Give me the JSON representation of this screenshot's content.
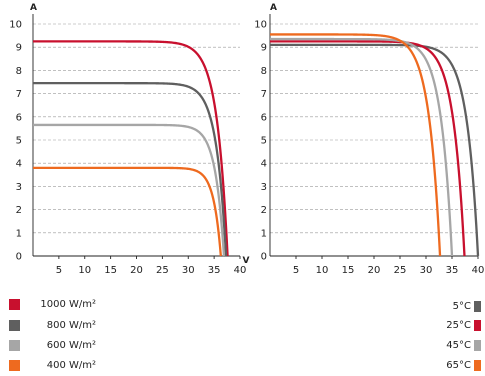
{
  "chart_data": [
    {
      "type": "line",
      "title": "",
      "ylabel": "A",
      "xlabel": "V",
      "xlim": [
        0,
        40
      ],
      "ylim": [
        0,
        10
      ],
      "x_ticks": [
        5,
        10,
        15,
        20,
        25,
        30,
        35,
        40
      ],
      "y_ticks": [
        0,
        1,
        2,
        3,
        4,
        5,
        6,
        7,
        8,
        9,
        10
      ],
      "grid": "horizontal dashed",
      "legend_position": "bottom-left",
      "series": [
        {
          "name": "1000 W/m²",
          "color": "#c8102e",
          "isc": 9.25,
          "voc": 37.6,
          "knee": 31.0
        },
        {
          "name": "800 W/m²",
          "color": "#5f5f5f",
          "isc": 7.45,
          "voc": 37.3,
          "knee": 31.3
        },
        {
          "name": "600 W/m²",
          "color": "#a6a6a6",
          "isc": 5.65,
          "voc": 36.9,
          "knee": 31.6
        },
        {
          "name": "400 W/m²",
          "color": "#ee6a1f",
          "isc": 3.8,
          "voc": 36.3,
          "knee": 31.8
        }
      ]
    },
    {
      "type": "line",
      "title": "",
      "ylabel": "A",
      "xlabel": "",
      "xlim": [
        0,
        40
      ],
      "ylim": [
        0,
        10
      ],
      "x_ticks": [
        5,
        10,
        15,
        20,
        25,
        30,
        35,
        40
      ],
      "y_ticks": [
        0,
        1,
        2,
        3,
        4,
        5,
        6,
        7,
        8,
        9,
        10
      ],
      "grid": "horizontal dashed",
      "legend_position": "bottom-right",
      "series": [
        {
          "name": "5°C",
          "color": "#5f5f5f",
          "isc": 9.1,
          "voc": 40.0,
          "knee": 33.2
        },
        {
          "name": "25°C",
          "color": "#c8102e",
          "isc": 9.25,
          "voc": 37.4,
          "knee": 30.5
        },
        {
          "name": "45°C",
          "color": "#a6a6a6",
          "isc": 9.35,
          "voc": 35.0,
          "knee": 28.2
        },
        {
          "name": "65°C",
          "color": "#ee6a1f",
          "isc": 9.55,
          "voc": 32.7,
          "knee": 25.8
        }
      ]
    }
  ]
}
